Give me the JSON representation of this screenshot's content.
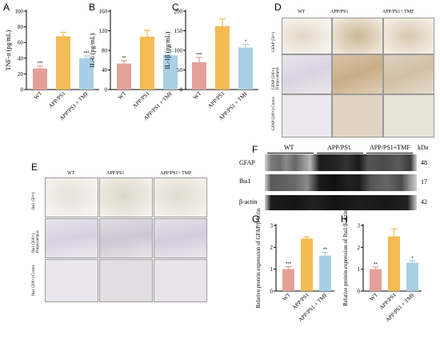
{
  "panels": {
    "A": {
      "letter": "A"
    },
    "B": {
      "letter": "B"
    },
    "C": {
      "letter": "C"
    },
    "D": {
      "letter": "D"
    },
    "E": {
      "letter": "E"
    },
    "F": {
      "letter": "F"
    },
    "G": {
      "letter": "G"
    },
    "H": {
      "letter": "H"
    }
  },
  "groups": [
    "WT",
    "APP/PS1",
    "APP/PS1 + TMF"
  ],
  "colors": {
    "wt": "#e3a199",
    "app": "#f3bb54",
    "tmf": "#a9cfe4"
  },
  "chart_data": [
    {
      "type": "bar",
      "panel": "A",
      "ylabel": "TNF-α (pg/mL)",
      "ylim": [
        0,
        100
      ],
      "yticks": [
        "0",
        "20",
        "40",
        "60",
        "80",
        "100"
      ],
      "categories": [
        "WT",
        "APP/PS1",
        "APP/PS1 + TMF"
      ],
      "values": [
        27,
        68,
        40
      ],
      "errors": [
        3,
        5,
        3
      ],
      "sig": [
        "***",
        "",
        "***"
      ]
    },
    {
      "type": "bar",
      "panel": "B",
      "ylabel": "IL-6 (pg/mL)",
      "ylim": [
        0,
        160
      ],
      "yticks": [
        "0",
        "40",
        "80",
        "120",
        "160"
      ],
      "categories": [
        "WT",
        "APP/PS1",
        "APP/PS1 + TMF"
      ],
      "values": [
        53,
        108,
        70
      ],
      "errors": [
        6,
        13,
        8
      ],
      "sig": [
        "**",
        "",
        "*"
      ]
    },
    {
      "type": "bar",
      "panel": "C",
      "ylabel": "IL-1β (pg/mL)",
      "ylim": [
        0,
        200
      ],
      "yticks": [
        "0",
        "50",
        "100",
        "150",
        "200"
      ],
      "categories": [
        "WT",
        "APP/PS1",
        "APP/PS1 + TMF"
      ],
      "values": [
        70,
        162,
        107
      ],
      "errors": [
        12,
        18,
        8
      ],
      "sig": [
        "***",
        "",
        "*"
      ]
    },
    {
      "type": "bar",
      "panel": "G",
      "ylabel": "Relative protein expression of GFAP/β-actin",
      "ylim": [
        0,
        3
      ],
      "yticks": [
        "0",
        "1",
        "2",
        "3"
      ],
      "categories": [
        "WT",
        "APP/PS1",
        "APP/PS1 + TMF"
      ],
      "values": [
        1.0,
        2.4,
        1.62
      ],
      "errors": [
        0.12,
        0.08,
        0.15
      ],
      "sig": [
        "***",
        "",
        "**"
      ]
    },
    {
      "type": "bar",
      "panel": "H",
      "ylabel": "Relative protein expression of Iba1/β-actin",
      "ylim": [
        0,
        3
      ],
      "yticks": [
        "0",
        "1",
        "2",
        "3"
      ],
      "categories": [
        "WT",
        "APP/PS1",
        "APP/PS1 + TMF"
      ],
      "values": [
        1.0,
        2.5,
        1.3
      ],
      "errors": [
        0.1,
        0.35,
        0.08
      ],
      "sig": [
        "**",
        "",
        "*"
      ]
    }
  ],
  "ihc_D": {
    "cols": [
      "WT",
      "APP/PS1",
      "APP/PS1+ TMF"
    ],
    "rows": [
      "GFAP (50×)",
      "GFAP (200×) Hippocampus",
      "GFAP (200×) Cortex"
    ]
  },
  "ihc_E": {
    "cols": [
      "WT",
      "APP/PS1",
      "APP/PS1+ TMF"
    ],
    "rows": [
      "Iba1 (50×)",
      "Iba1 (200×) Hippocampus",
      "Iba1 (200×) Cortex"
    ]
  },
  "blot": {
    "groups": [
      "WT",
      "APP/PS1",
      "APP/PS1+TMF"
    ],
    "unit": "kDa",
    "proteins": [
      {
        "name": "GFAP",
        "kda": "48"
      },
      {
        "name": "Iba1",
        "kda": "17"
      },
      {
        "name": "β-actin",
        "kda": "42"
      }
    ]
  }
}
